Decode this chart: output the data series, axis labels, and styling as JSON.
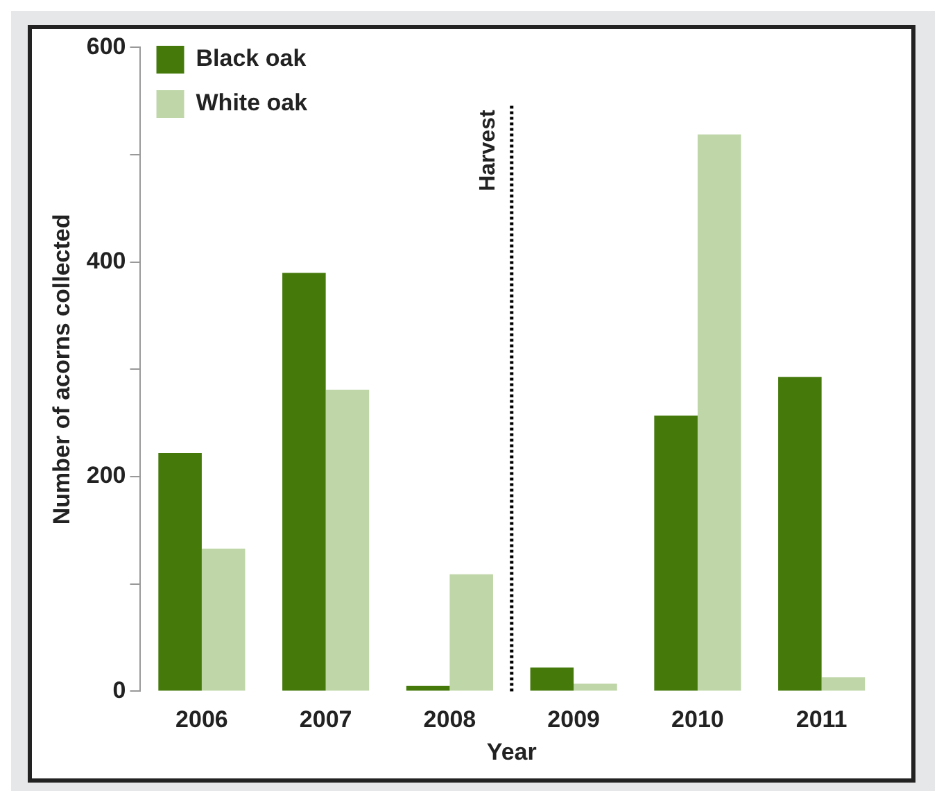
{
  "chart_data": {
    "type": "bar",
    "xlabel": "Year",
    "ylabel": "Number of acorns collected",
    "categories": [
      "2006",
      "2007",
      "2008",
      "2009",
      "2010",
      "2011"
    ],
    "series": [
      {
        "name": "Black oak",
        "color": "#457a0b",
        "values": [
          222,
          390,
          5,
          22,
          257,
          293
        ]
      },
      {
        "name": "White oak",
        "color": "#bfd6a8",
        "values": [
          133,
          281,
          109,
          7,
          519,
          13
        ]
      }
    ],
    "ylim": [
      0,
      600
    ],
    "yticks": [
      0,
      {
        "value": 100,
        "label": null
      },
      200,
      {
        "value": 300,
        "label": null
      },
      400,
      {
        "value": 500,
        "label": null
      },
      600
    ],
    "annotations": [
      "Harvest"
    ],
    "grid": false,
    "legend": "top left"
  }
}
